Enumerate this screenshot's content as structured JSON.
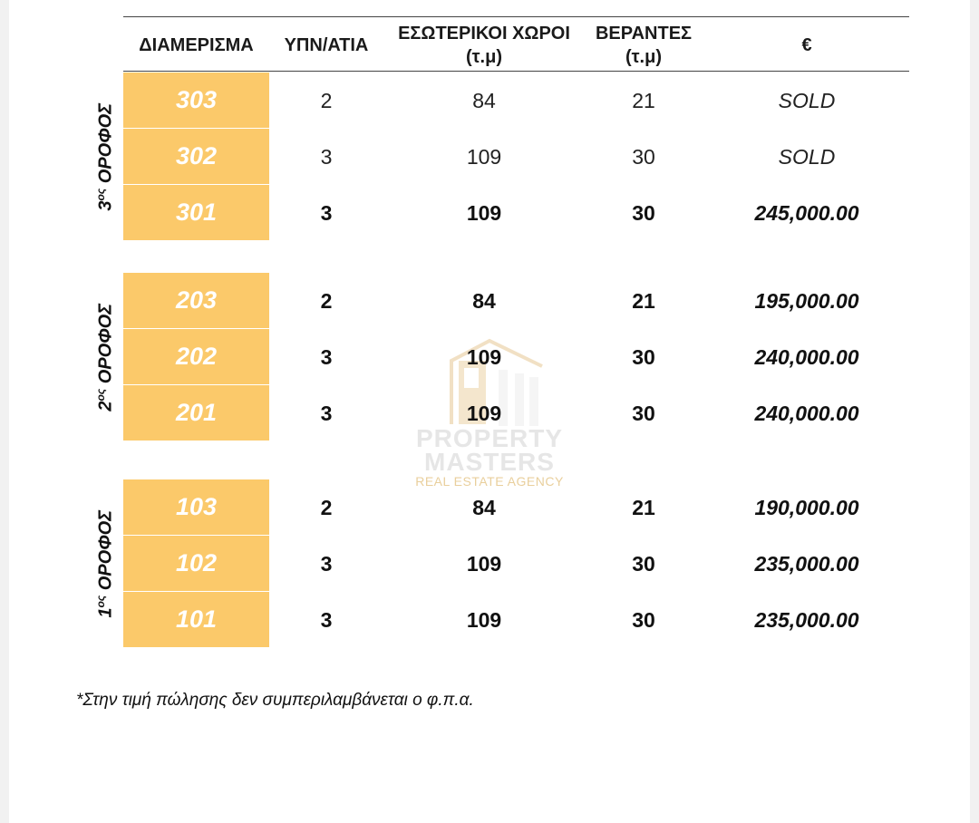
{
  "header": {
    "apartment": "ΔΙΑΜΕΡΙΣΜΑ",
    "bedrooms": "ΥΠΝ/ΑΤΙΑ",
    "interior_line1": "ΕΣΩΤΕΡΙΚΟΙ ΧΩΡΟΙ",
    "interior_line2": "(τ.μ)",
    "verandas_line1": "ΒΕΡΑΝΤΕΣ",
    "verandas_line2": "(τ.μ)",
    "price": "€"
  },
  "floors": [
    {
      "label_num": "3",
      "label_sup": "ος",
      "label_text": " ΟΡΟΦΟΣ",
      "rows": [
        {
          "unit": "303",
          "bedrooms": "2",
          "interior": "84",
          "verandas": "21",
          "price": "SOLD",
          "sold": true
        },
        {
          "unit": "302",
          "bedrooms": "3",
          "interior": "109",
          "verandas": "30",
          "price": "SOLD",
          "sold": true
        },
        {
          "unit": "301",
          "bedrooms": "3",
          "interior": "109",
          "verandas": "30",
          "price": "245,000.00",
          "sold": false
        }
      ]
    },
    {
      "label_num": "2",
      "label_sup": "ος",
      "label_text": " ΟΡΟΦΟΣ",
      "rows": [
        {
          "unit": "203",
          "bedrooms": "2",
          "interior": "84",
          "verandas": "21",
          "price": "195,000.00",
          "sold": false
        },
        {
          "unit": "202",
          "bedrooms": "3",
          "interior": "109",
          "verandas": "30",
          "price": "240,000.00",
          "sold": false
        },
        {
          "unit": "201",
          "bedrooms": "3",
          "interior": "109",
          "verandas": "30",
          "price": "240,000.00",
          "sold": false
        }
      ]
    },
    {
      "label_num": "1",
      "label_sup": "ος",
      "label_text": " ΟΡΟΦΟΣ",
      "rows": [
        {
          "unit": "103",
          "bedrooms": "2",
          "interior": "84",
          "verandas": "21",
          "price": "190,000.00",
          "sold": false
        },
        {
          "unit": "102",
          "bedrooms": "3",
          "interior": "109",
          "verandas": "30",
          "price": "235,000.00",
          "sold": false
        },
        {
          "unit": "101",
          "bedrooms": "3",
          "interior": "109",
          "verandas": "30",
          "price": "235,000.00",
          "sold": false
        }
      ]
    }
  ],
  "watermark": {
    "line1": "PROPERTY",
    "line2": "MASTERS",
    "line3": "REAL ESTATE AGENCY"
  },
  "footnote": "*Στην τιμή πώλησης δεν συμπεριλαμβάνεται ο φ.π.α.",
  "colors": {
    "unit_cell": "#fbc96a",
    "unit_text": "#ffffff",
    "watermark_accent": "#e9cf9c"
  }
}
